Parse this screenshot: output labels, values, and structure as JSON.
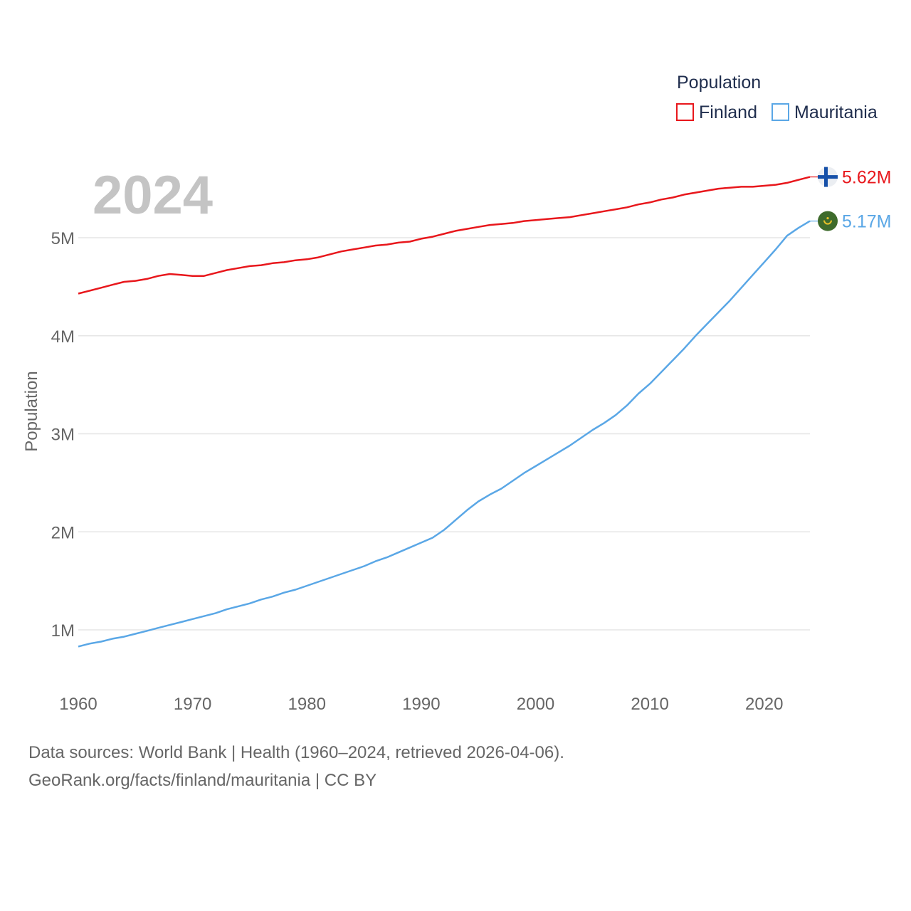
{
  "chart_data": {
    "type": "line",
    "title": "",
    "year_label": "2024",
    "xlabel": "",
    "ylabel": "Population",
    "xlim": [
      1960,
      2024
    ],
    "ylim": [
      0.65,
      5.9
    ],
    "x_ticks": [
      1960,
      1970,
      1980,
      1990,
      2000,
      2010,
      2020
    ],
    "y_ticks": [
      {
        "value": 1,
        "label": "1M"
      },
      {
        "value": 2,
        "label": "2M"
      },
      {
        "value": 3,
        "label": "3M"
      },
      {
        "value": 4,
        "label": "4M"
      },
      {
        "value": 5,
        "label": "5M"
      }
    ],
    "legend": {
      "title": "Population",
      "position": "top-right"
    },
    "x": [
      1960,
      1961,
      1962,
      1963,
      1964,
      1965,
      1966,
      1967,
      1968,
      1969,
      1970,
      1971,
      1972,
      1973,
      1974,
      1975,
      1976,
      1977,
      1978,
      1979,
      1980,
      1981,
      1982,
      1983,
      1984,
      1985,
      1986,
      1987,
      1988,
      1989,
      1990,
      1991,
      1992,
      1993,
      1994,
      1995,
      1996,
      1997,
      1998,
      1999,
      2000,
      2001,
      2002,
      2003,
      2004,
      2005,
      2006,
      2007,
      2008,
      2009,
      2010,
      2011,
      2012,
      2013,
      2014,
      2015,
      2016,
      2017,
      2018,
      2019,
      2020,
      2021,
      2022,
      2023,
      2024
    ],
    "series": [
      {
        "name": "Finland",
        "color": "#e8171c",
        "end_label": "5.62M",
        "flag": "finland-flag-icon",
        "values": [
          4.43,
          4.46,
          4.49,
          4.52,
          4.55,
          4.56,
          4.58,
          4.61,
          4.63,
          4.62,
          4.61,
          4.61,
          4.64,
          4.67,
          4.69,
          4.71,
          4.72,
          4.74,
          4.75,
          4.77,
          4.78,
          4.8,
          4.83,
          4.86,
          4.88,
          4.9,
          4.92,
          4.93,
          4.95,
          4.96,
          4.99,
          5.01,
          5.04,
          5.07,
          5.09,
          5.11,
          5.13,
          5.14,
          5.15,
          5.17,
          5.18,
          5.19,
          5.2,
          5.21,
          5.23,
          5.25,
          5.27,
          5.29,
          5.31,
          5.34,
          5.36,
          5.39,
          5.41,
          5.44,
          5.46,
          5.48,
          5.5,
          5.51,
          5.52,
          5.52,
          5.53,
          5.54,
          5.56,
          5.59,
          5.62
        ]
      },
      {
        "name": "Mauritania",
        "color": "#5aa7e6",
        "end_label": "5.17M",
        "flag": "mauritania-flag-icon",
        "values": [
          0.83,
          0.86,
          0.88,
          0.91,
          0.93,
          0.96,
          0.99,
          1.02,
          1.05,
          1.08,
          1.11,
          1.14,
          1.17,
          1.21,
          1.24,
          1.27,
          1.31,
          1.34,
          1.38,
          1.41,
          1.45,
          1.49,
          1.53,
          1.57,
          1.61,
          1.65,
          1.7,
          1.74,
          1.79,
          1.84,
          1.89,
          1.94,
          2.02,
          2.12,
          2.22,
          2.31,
          2.38,
          2.44,
          2.52,
          2.6,
          2.67,
          2.74,
          2.81,
          2.88,
          2.96,
          3.04,
          3.11,
          3.19,
          3.29,
          3.41,
          3.51,
          3.63,
          3.75,
          3.87,
          4.0,
          4.12,
          4.24,
          4.36,
          4.49,
          4.62,
          4.75,
          4.88,
          5.02,
          5.1,
          5.17
        ]
      }
    ]
  },
  "footer": {
    "line1": "Data sources: World Bank | Health (1960–2024, retrieved 2026-04-06).",
    "line2": "GeoRank.org/facts/finland/mauritania | CC BY"
  }
}
